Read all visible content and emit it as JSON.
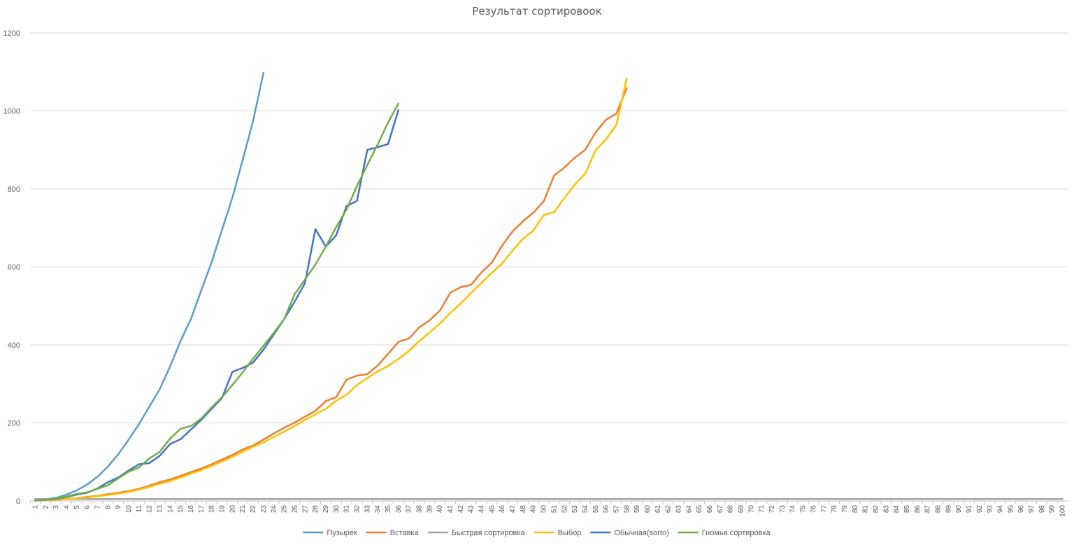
{
  "chart_data": {
    "type": "line",
    "title": "Результат сортировоок",
    "ylim": [
      0,
      1200
    ],
    "yticks": [
      0,
      200,
      400,
      600,
      800,
      1000,
      1200
    ],
    "x_range": [
      1,
      100
    ],
    "grid": true,
    "legend_position": "bottom",
    "series": [
      {
        "name": "Пузырек",
        "color": "#5b9bd5",
        "x": [
          1,
          2,
          3,
          4,
          5,
          6,
          7,
          8,
          9,
          10,
          11,
          12,
          13,
          14,
          15,
          16,
          17,
          18,
          19,
          20,
          21,
          22,
          23
        ],
        "values": [
          2,
          4,
          8,
          16,
          27,
          42,
          62,
          88,
          120,
          157,
          197,
          242,
          287,
          345,
          410,
          466,
          540,
          612,
          695,
          778,
          875,
          975,
          1098
        ]
      },
      {
        "name": "Вставка",
        "color": "#ed7d31",
        "x": [
          1,
          2,
          3,
          4,
          5,
          6,
          7,
          8,
          9,
          10,
          11,
          12,
          13,
          14,
          15,
          16,
          17,
          18,
          19,
          20,
          21,
          22,
          23,
          24,
          25,
          26,
          27,
          28,
          29,
          30,
          31,
          32,
          33,
          34,
          35,
          36,
          37,
          38,
          39,
          40,
          41,
          42,
          43,
          44,
          45,
          46,
          47,
          48,
          49,
          50,
          51,
          52,
          53,
          54,
          55,
          56,
          57,
          58
        ],
        "values": [
          1,
          2,
          3,
          5,
          7,
          10,
          13,
          17,
          21,
          25,
          31,
          39,
          48,
          55,
          64,
          74,
          83,
          94,
          106,
          118,
          132,
          142,
          157,
          173,
          188,
          201,
          216,
          231,
          256,
          266,
          311,
          321,
          325,
          347,
          377,
          408,
          416,
          445,
          463,
          488,
          534,
          548,
          554,
          586,
          611,
          655,
          691,
          717,
          739,
          768,
          834,
          855,
          880,
          900,
          945,
          977,
          993,
          1058
        ]
      },
      {
        "name": "Быстрая сортировка",
        "color": "#a5a5a5",
        "x": [
          1,
          10,
          20,
          30,
          40,
          50,
          60,
          70,
          80,
          90,
          100
        ],
        "values": [
          5,
          5,
          5,
          5,
          5,
          5,
          5,
          5,
          5,
          5,
          5
        ]
      },
      {
        "name": "Выбор",
        "color": "#ffc000",
        "x": [
          1,
          2,
          3,
          4,
          5,
          6,
          7,
          8,
          9,
          10,
          11,
          12,
          13,
          14,
          15,
          16,
          17,
          18,
          19,
          20,
          21,
          22,
          23,
          24,
          25,
          26,
          27,
          28,
          29,
          30,
          31,
          32,
          33,
          34,
          35,
          36,
          37,
          38,
          39,
          40,
          41,
          42,
          43,
          44,
          45,
          46,
          47,
          48,
          49,
          50,
          51,
          52,
          53,
          54,
          55,
          56,
          57,
          58
        ],
        "values": [
          1,
          2,
          3,
          5,
          7,
          9,
          12,
          15,
          19,
          23,
          29,
          36,
          44,
          51,
          60,
          70,
          79,
          90,
          101,
          113,
          126,
          139,
          150,
          164,
          178,
          192,
          208,
          222,
          236,
          257,
          272,
          297,
          315,
          332,
          346,
          364,
          384,
          410,
          432,
          455,
          482,
          506,
          533,
          559,
          585,
          609,
          642,
          672,
          693,
          733,
          740,
          777,
          811,
          839,
          899,
          927,
          964,
          1083
        ]
      },
      {
        "name": "Обычная(sorto)",
        "color": "#4472c4",
        "x": [
          1,
          2,
          3,
          4,
          5,
          6,
          7,
          8,
          9,
          10,
          11,
          12,
          13,
          14,
          15,
          16,
          17,
          18,
          19,
          20,
          21,
          22,
          23,
          24,
          25,
          26,
          27,
          28,
          29,
          30,
          31,
          32,
          33,
          34,
          35,
          36
        ],
        "values": [
          1,
          3,
          5,
          10,
          16,
          21,
          32,
          48,
          60,
          78,
          94,
          97,
          116,
          146,
          158,
          183,
          208,
          236,
          264,
          331,
          341,
          355,
          388,
          427,
          467,
          511,
          559,
          697,
          652,
          681,
          756,
          769,
          900,
          907,
          915,
          1002
        ]
      },
      {
        "name": "Гномья сортировка",
        "color": "#70ad47",
        "x": [
          1,
          2,
          3,
          4,
          5,
          6,
          7,
          8,
          9,
          10,
          11,
          12,
          13,
          14,
          15,
          16,
          17,
          18,
          19,
          20,
          21,
          22,
          23,
          24,
          25,
          26,
          27,
          28,
          29,
          30,
          31,
          32,
          33,
          34,
          35,
          36
        ],
        "values": [
          1,
          3,
          6,
          11,
          18,
          22,
          31,
          40,
          58,
          75,
          86,
          109,
          126,
          160,
          185,
          192,
          211,
          240,
          266,
          297,
          330,
          365,
          398,
          431,
          467,
          530,
          568,
          606,
          652,
          702,
          747,
          807,
          861,
          914,
          970,
          1019
        ]
      }
    ]
  }
}
